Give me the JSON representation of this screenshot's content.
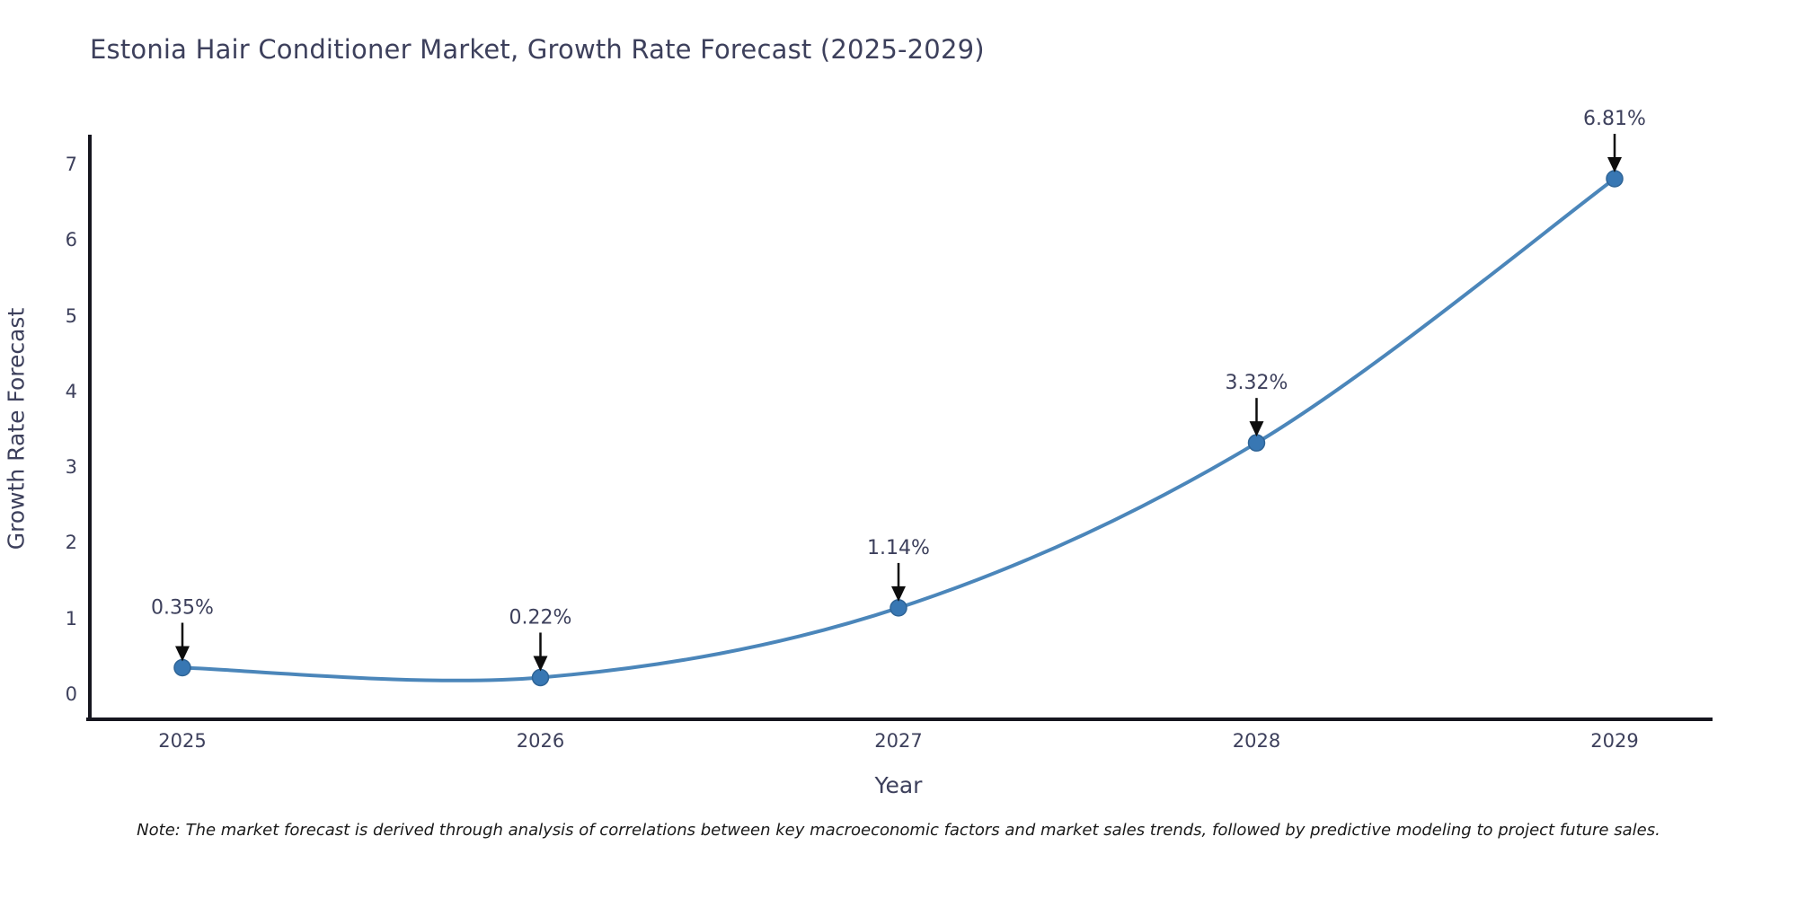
{
  "title": "Estonia Hair Conditioner Market, Growth Rate Forecast (2025-2029)",
  "note": "Note: The market forecast is derived through analysis of correlations between key macroeconomic factors and market sales trends, followed by predictive modeling to project future sales.",
  "chart_data": {
    "type": "line",
    "x": [
      2025,
      2026,
      2027,
      2028,
      2029
    ],
    "xticks": [
      "2025",
      "2026",
      "2027",
      "2028",
      "2029"
    ],
    "yticks": [
      0,
      1,
      2,
      3,
      4,
      5,
      6,
      7
    ],
    "series": [
      {
        "name": "Growth Rate Forecast",
        "values": [
          0.35,
          0.22,
          1.14,
          3.32,
          6.81
        ]
      }
    ],
    "point_labels": [
      "0.35%",
      "0.22%",
      "1.14%",
      "3.32%",
      "6.81%"
    ],
    "title": "Estonia Hair Conditioner Market, Growth Rate Forecast (2025-2029)",
    "xlabel": "Year",
    "ylabel": "Growth Rate Forecast",
    "ylim": [
      0,
      7
    ],
    "grid": false,
    "legend_position": "none",
    "line_color": "#4b86ba",
    "marker_color": "#3877b3",
    "marker_edge_color": "#2f6496",
    "arrow_color": "#0d0d0d",
    "text_color": "#3d405c",
    "axis_color": "#16161f"
  }
}
